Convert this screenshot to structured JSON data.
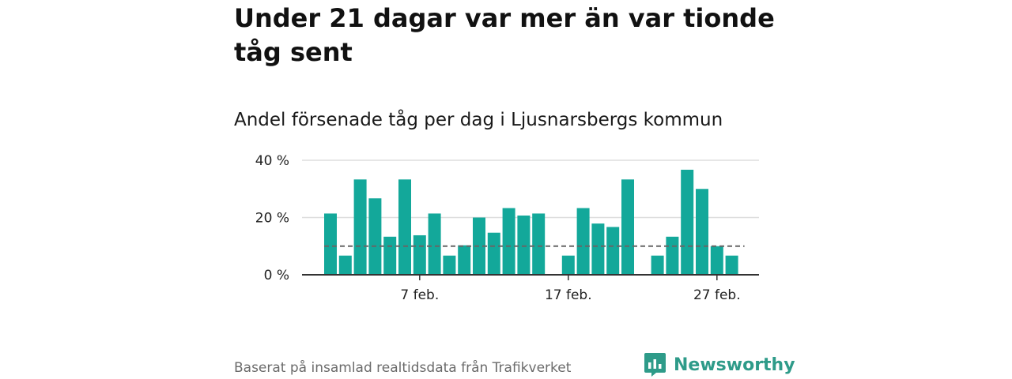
{
  "header": {
    "title": "Under 21 dagar var mer än var tionde tåg sent",
    "subtitle": "Andel försenade tåg per dag i Ljusnarsbergs kommun"
  },
  "footer": {
    "source": "Baserat på insamlad realtidsdata från Trafikverket",
    "brand": "Newsworthy"
  },
  "colors": {
    "bar": "#13a89a",
    "reference_line": "#666666",
    "brand": "#2e9b89"
  },
  "icons": [
    "newsworthy-logo-icon"
  ],
  "chart_data": {
    "type": "bar",
    "categories": [
      "1 feb.",
      "2 feb.",
      "3 feb.",
      "4 feb.",
      "5 feb.",
      "6 feb.",
      "7 feb.",
      "8 feb.",
      "9 feb.",
      "10 feb.",
      "11 feb.",
      "12 feb.",
      "13 feb.",
      "14 feb.",
      "15 feb.",
      "16 feb.",
      "17 feb.",
      "18 feb.",
      "19 feb.",
      "20 feb.",
      "21 feb.",
      "22 feb.",
      "23 feb.",
      "24 feb.",
      "25 feb.",
      "26 feb.",
      "27 feb.",
      "28 feb.",
      "1 mar."
    ],
    "values": [
      21.4,
      6.7,
      33.3,
      26.7,
      13.3,
      33.3,
      13.8,
      21.4,
      6.7,
      10.3,
      20.0,
      14.7,
      23.3,
      20.7,
      21.4,
      0,
      6.7,
      23.3,
      17.9,
      16.7,
      33.3,
      0,
      6.7,
      13.3,
      36.7,
      30.0,
      10.0,
      6.7,
      0
    ],
    "reference_line": 10,
    "ylim": [
      0,
      40
    ],
    "yticks": [
      0,
      20,
      40
    ],
    "ytick_labels": [
      "0 %",
      "20 %",
      "40 %"
    ],
    "xtick_labels": [
      "7 feb.",
      "17 feb.",
      "27 feb."
    ],
    "xtick_positions": [
      "7 feb.",
      "17 feb.",
      "27 feb."
    ],
    "grid": true
  }
}
